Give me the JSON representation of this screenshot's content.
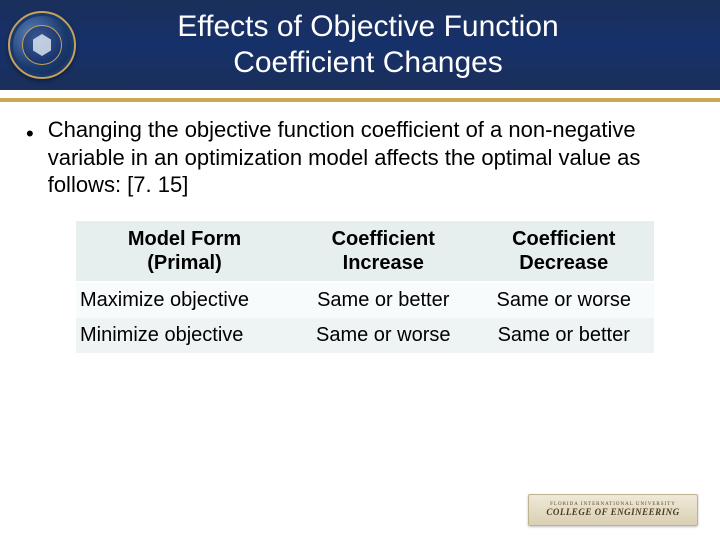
{
  "header": {
    "title_line1": "Effects of Objective Function",
    "title_line2": "Coefficient Changes",
    "band_color": "#16306a",
    "gold_color": "#c9a84f",
    "title_color": "#ffffff",
    "title_fontsize": 30
  },
  "bullet": {
    "marker": "•",
    "text": "Changing the objective function coefficient of a non-negative variable in an optimization model affects the optimal value as follows:  [7. 15]",
    "fontsize": 22,
    "color": "#000000"
  },
  "table": {
    "header_bg": "#e6eeee",
    "row_odd_bg": "#f8fbfb",
    "row_even_bg": "#eef4f4",
    "fontsize": 20,
    "columns": [
      {
        "label_line1": "Model Form",
        "label_line2": "(Primal)"
      },
      {
        "label_line1": "Coefficient",
        "label_line2": "Increase"
      },
      {
        "label_line1": "Coefficient",
        "label_line2": "Decrease"
      }
    ],
    "rows": [
      [
        "Maximize objective",
        "Same or better",
        "Same or worse"
      ],
      [
        "Minimize objective",
        "Same or worse",
        "Same or better"
      ]
    ]
  },
  "footer": {
    "small_text": "FLORIDA INTERNATIONAL UNIVERSITY",
    "big_text": "COLLEGE OF ENGINEERING"
  }
}
